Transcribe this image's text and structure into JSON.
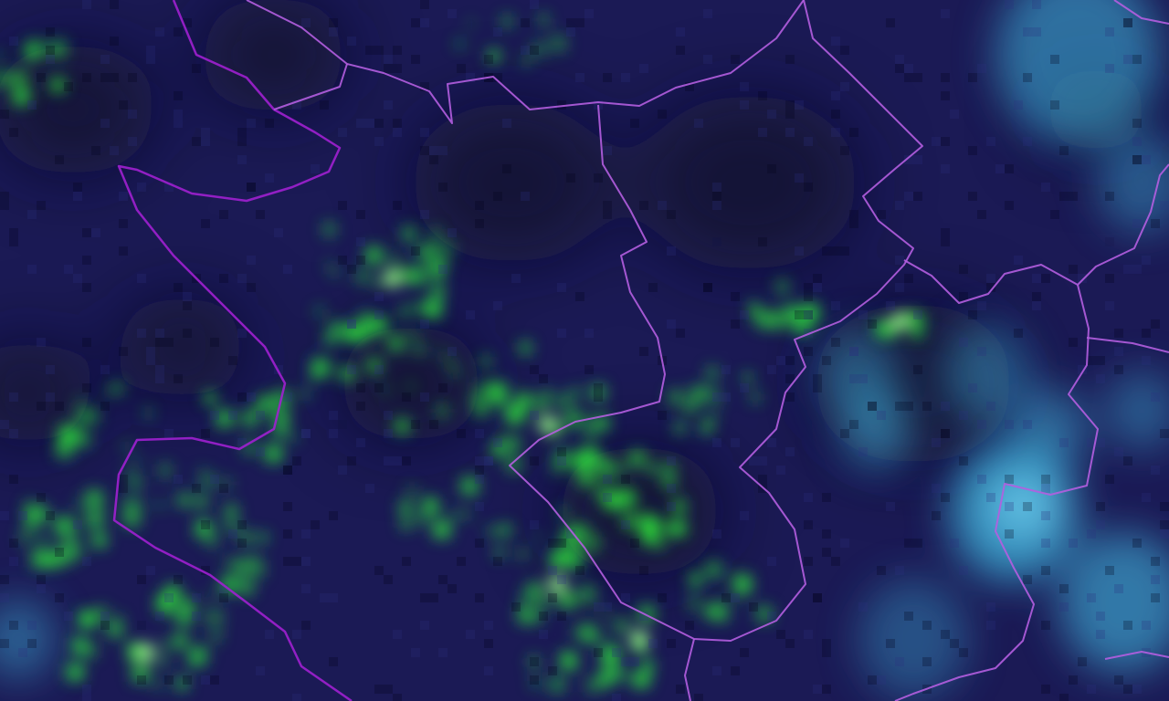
{
  "map": {
    "colors": {
      "background": "#1b1a55",
      "dark_patch": "#0f0d2a",
      "vegetation": "#2ee83a",
      "vegetation_bright": "#9dff8a",
      "cloud": "#3fb8e0",
      "cloud_light": "#6fd0f0",
      "border": "#b45ee0",
      "border_thick": "#a020d0"
    }
  }
}
